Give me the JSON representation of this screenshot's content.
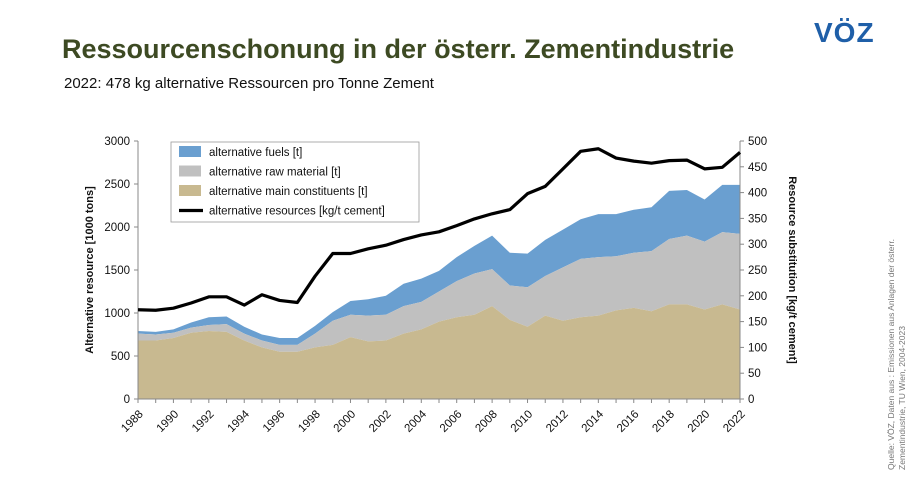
{
  "header": {
    "title": "Ressourcenschonung in der österr. Zementindustrie",
    "subtitle": "2022: 478 kg alternative Ressourcen pro Tonne Zement",
    "logo_text": "VÖZ"
  },
  "source": {
    "line1": "Quelle: VÖZ, Daten aus : Emissionen aus Anlagen der österr.",
    "line2": "Zementindustrie, TU Wien, 2004-2023"
  },
  "colors": {
    "title": "#3d4a23",
    "fuels": "#6a9fd0",
    "raw": "#c0c0c0",
    "main": "#c8b990",
    "line": "#000000",
    "logo": "#1f5fa8"
  },
  "chart_data": {
    "type": "area",
    "xlabel": "",
    "ylabel": "Alternative resource [1000 tons]",
    "y2label": "Resource substitution [kg/t cement]",
    "ylim": [
      0,
      3000
    ],
    "y2lim": [
      0,
      500
    ],
    "yticks": [
      0,
      500,
      1000,
      1500,
      2000,
      2500,
      3000
    ],
    "y2ticks": [
      0,
      50,
      100,
      150,
      200,
      250,
      300,
      350,
      400,
      450,
      500
    ],
    "x": [
      1988,
      1989,
      1990,
      1991,
      1992,
      1993,
      1994,
      1995,
      1996,
      1997,
      1998,
      1999,
      2000,
      2001,
      2002,
      2003,
      2004,
      2005,
      2006,
      2007,
      2008,
      2009,
      2010,
      2011,
      2012,
      2013,
      2014,
      2015,
      2016,
      2017,
      2018,
      2019,
      2020,
      2021,
      2022
    ],
    "xticks": [
      1988,
      1990,
      1992,
      1994,
      1996,
      1998,
      2000,
      2002,
      2004,
      2006,
      2008,
      2010,
      2012,
      2014,
      2016,
      2018,
      2020,
      2022
    ],
    "grid": false,
    "legend_position": "top-left",
    "series": [
      {
        "name": "alternative main constituents [t]",
        "kind": "area",
        "axis": "left",
        "values": [
          680,
          680,
          710,
          770,
          790,
          780,
          680,
          600,
          550,
          550,
          600,
          630,
          720,
          670,
          680,
          760,
          810,
          900,
          950,
          980,
          1080,
          920,
          840,
          970,
          910,
          950,
          970,
          1030,
          1060,
          1020,
          1100,
          1100,
          1040,
          1100,
          1040
        ]
      },
      {
        "name": "alternative raw material [t]",
        "kind": "area",
        "axis": "left",
        "values": [
          80,
          70,
          60,
          60,
          70,
          90,
          80,
          80,
          80,
          80,
          160,
          280,
          260,
          300,
          300,
          320,
          320,
          350,
          420,
          480,
          430,
          400,
          460,
          460,
          620,
          680,
          680,
          630,
          640,
          700,
          760,
          800,
          790,
          840,
          880
        ]
      },
      {
        "name": "alternative fuels [t]",
        "kind": "area",
        "axis": "left",
        "values": [
          30,
          30,
          40,
          60,
          90,
          90,
          80,
          70,
          80,
          80,
          90,
          100,
          160,
          190,
          220,
          260,
          270,
          240,
          280,
          320,
          390,
          380,
          390,
          420,
          440,
          460,
          500,
          490,
          500,
          510,
          560,
          530,
          490,
          550,
          570
        ]
      },
      {
        "name": "alternative resources [kg/t cement]",
        "kind": "line",
        "axis": "right",
        "values": [
          173,
          172,
          176,
          186,
          198,
          198,
          182,
          202,
          191,
          187,
          238,
          282,
          282,
          291,
          298,
          309,
          318,
          324,
          336,
          349,
          359,
          367,
          398,
          412,
          446,
          480,
          485,
          467,
          461,
          457,
          462,
          463,
          446,
          449,
          478
        ]
      }
    ]
  }
}
